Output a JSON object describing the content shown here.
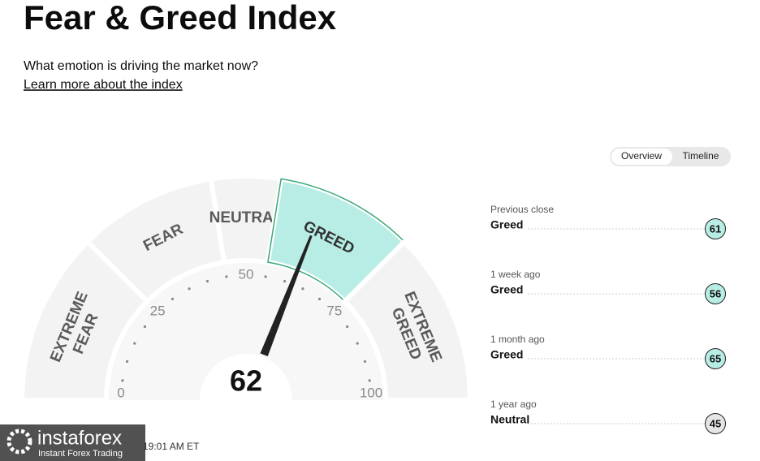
{
  "header": {
    "title": "Fear & Greed Index",
    "subtitle": "What emotion is driving the market now?",
    "link": "Learn more about the index"
  },
  "tabs": [
    "Overview",
    "Timeline"
  ],
  "gauge": {
    "value": 62,
    "ticks": [
      0,
      25,
      50,
      75,
      100
    ],
    "zones": [
      {
        "label": [
          "EXTREME",
          "FEAR"
        ],
        "range": [
          0,
          25
        ]
      },
      {
        "label": [
          "FEAR"
        ],
        "range": [
          25,
          45
        ]
      },
      {
        "label": [
          "NEUTRAL"
        ],
        "range": [
          45,
          55
        ]
      },
      {
        "label": [
          "GREED"
        ],
        "range": [
          55,
          75
        ]
      },
      {
        "label": [
          "EXTREME",
          "GREED"
        ],
        "range": [
          75,
          100
        ]
      }
    ]
  },
  "history": [
    {
      "period": "Previous close",
      "rating": "Greed",
      "value": 61
    },
    {
      "period": "1 week ago",
      "rating": "Greed",
      "value": 56
    },
    {
      "period": "1 month ago",
      "rating": "Greed",
      "value": 65
    },
    {
      "period": "1 year ago",
      "rating": "Neutral",
      "value": 45
    }
  ],
  "updated": "19:01 AM ET",
  "watermark": {
    "brand": "instaforex",
    "tagline": "Instant Forex Trading"
  }
}
